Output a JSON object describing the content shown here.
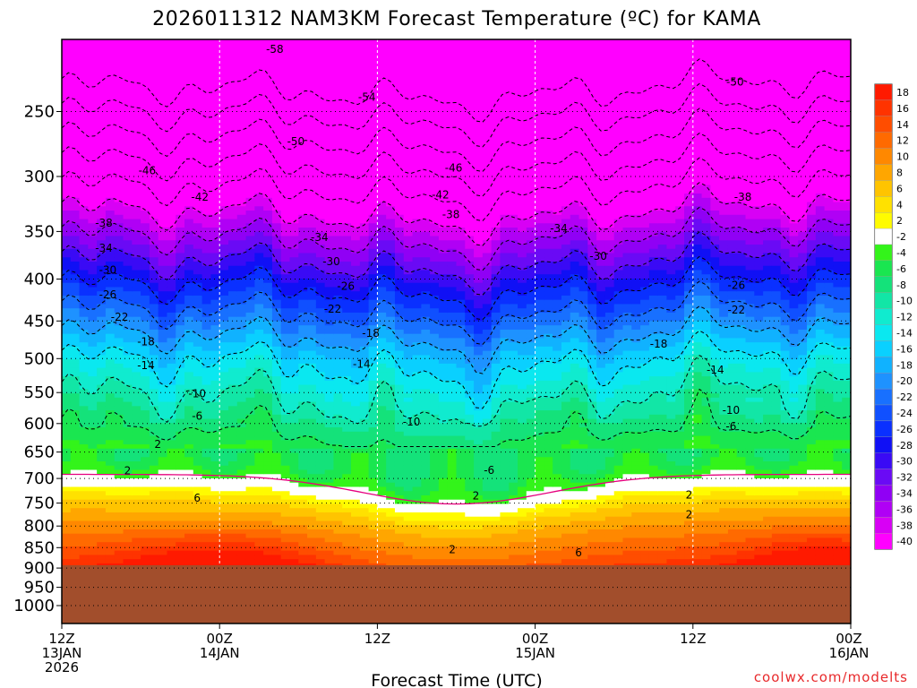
{
  "title": "2026011312 NAM3KM Forecast Temperature (ºC) for KAMA",
  "xlabel": "Forecast Time (UTC)",
  "credit": "coolwx.com/modelts",
  "colors": {
    "ground": "#a24e2c",
    "contour": "#000000",
    "freezing_line": "#e6007e"
  },
  "chart_data": {
    "type": "heatmap",
    "title": "2026011312 NAM3KM Forecast Temperature (ºC) for KAMA",
    "xlabel": "Forecast Time (UTC)",
    "ylabel": "",
    "x_ticks": [
      {
        "hour": 0,
        "lines": [
          "12Z",
          "13JAN",
          "2026"
        ]
      },
      {
        "hour": 12,
        "lines": [
          "00Z",
          "14JAN"
        ]
      },
      {
        "hour": 24,
        "lines": [
          "12Z"
        ]
      },
      {
        "hour": 36,
        "lines": [
          "00Z",
          "15JAN"
        ]
      },
      {
        "hour": 48,
        "lines": [
          "12Z"
        ]
      },
      {
        "hour": 60,
        "lines": [
          "00Z",
          "16JAN"
        ]
      }
    ],
    "xlim": [
      0,
      60
    ],
    "y_ticks": [
      250,
      300,
      350,
      400,
      450,
      500,
      550,
      600,
      650,
      700,
      750,
      800,
      850,
      900,
      950,
      1000
    ],
    "ylim_hPa": [
      200,
      1050
    ],
    "y_scale": "log",
    "surface_pressure_hPa": 893,
    "grid": true,
    "legend": {
      "placement": "right",
      "labels": [
        "18",
        "16",
        "14",
        "12",
        "10",
        "8",
        "6",
        "4",
        "2",
        "-2",
        "-4",
        "-6",
        "-8",
        "-10",
        "-12",
        "-14",
        "-16",
        "-18",
        "-20",
        "-22",
        "-24",
        "-26",
        "-28",
        "-30",
        "-32",
        "-34",
        "-36",
        "-38",
        "-40"
      ],
      "colors": [
        "#ff1a00",
        "#ff3300",
        "#ff4d00",
        "#ff6a00",
        "#ff8800",
        "#ffa600",
        "#ffc400",
        "#ffe100",
        "#fffb00",
        "#ffffff",
        "#33f41a",
        "#1ae650",
        "#14e27a",
        "#12e6a6",
        "#10ebcf",
        "#0ae8f0",
        "#0ad0ff",
        "#10b2ff",
        "#1e92ff",
        "#1870ff",
        "#1050ff",
        "#0a30ff",
        "#1010f5",
        "#3a0af5",
        "#6a0af5",
        "#9000f5",
        "#b000f5",
        "#d800f5",
        "#ff00ff"
      ]
    },
    "isotherm_labels": [
      {
        "label": "-58",
        "x": 16.2,
        "p": 210
      },
      {
        "label": "-54",
        "x": 23.2,
        "p": 240
      },
      {
        "label": "-50",
        "x": 17.8,
        "p": 272
      },
      {
        "label": "-50",
        "x": 51.2,
        "p": 230
      },
      {
        "label": "-46",
        "x": 6.5,
        "p": 295
      },
      {
        "label": "-46",
        "x": 29.8,
        "p": 293
      },
      {
        "label": "-42",
        "x": 10.5,
        "p": 318
      },
      {
        "label": "-42",
        "x": 28.8,
        "p": 316
      },
      {
        "label": "-38",
        "x": 3.2,
        "p": 342
      },
      {
        "label": "-38",
        "x": 29.6,
        "p": 334
      },
      {
        "label": "-38",
        "x": 51.8,
        "p": 318
      },
      {
        "label": "-34",
        "x": 3.2,
        "p": 367
      },
      {
        "label": "-34",
        "x": 19.6,
        "p": 356
      },
      {
        "label": "-34",
        "x": 37.8,
        "p": 347
      },
      {
        "label": "-30",
        "x": 3.5,
        "p": 390
      },
      {
        "label": "-30",
        "x": 20.5,
        "p": 381
      },
      {
        "label": "-30",
        "x": 40.8,
        "p": 375
      },
      {
        "label": "-26",
        "x": 3.5,
        "p": 418
      },
      {
        "label": "-26",
        "x": 21.6,
        "p": 408
      },
      {
        "label": "-26",
        "x": 51.3,
        "p": 407
      },
      {
        "label": "-22",
        "x": 4.4,
        "p": 445
      },
      {
        "label": "-22",
        "x": 20.6,
        "p": 435
      },
      {
        "label": "-22",
        "x": 51.3,
        "p": 436
      },
      {
        "label": "-18",
        "x": 6.4,
        "p": 477
      },
      {
        "label": "-18",
        "x": 23.5,
        "p": 466
      },
      {
        "label": "-18",
        "x": 45.4,
        "p": 480
      },
      {
        "label": "-14",
        "x": 6.4,
        "p": 510
      },
      {
        "label": "-14",
        "x": 22.8,
        "p": 508
      },
      {
        "label": "-14",
        "x": 49.7,
        "p": 516
      },
      {
        "label": "-10",
        "x": 10.3,
        "p": 552
      },
      {
        "label": "-10",
        "x": 26.6,
        "p": 597
      },
      {
        "label": "-10",
        "x": 50.9,
        "p": 578
      },
      {
        "label": "-6",
        "x": 10.3,
        "p": 588
      },
      {
        "label": "-6",
        "x": 32.5,
        "p": 684
      },
      {
        "label": "-6",
        "x": 50.9,
        "p": 605
      },
      {
        "label": "2",
        "x": 7.3,
        "p": 636
      },
      {
        "label": "2",
        "x": 5.0,
        "p": 685
      },
      {
        "label": "2",
        "x": 31.5,
        "p": 735
      },
      {
        "label": "2",
        "x": 47.7,
        "p": 733
      },
      {
        "label": "2",
        "x": 47.7,
        "p": 775
      },
      {
        "label": "2",
        "x": 29.7,
        "p": 855
      },
      {
        "label": "6",
        "x": 10.3,
        "p": 740
      },
      {
        "label": "6",
        "x": 39.3,
        "p": 862
      }
    ]
  }
}
